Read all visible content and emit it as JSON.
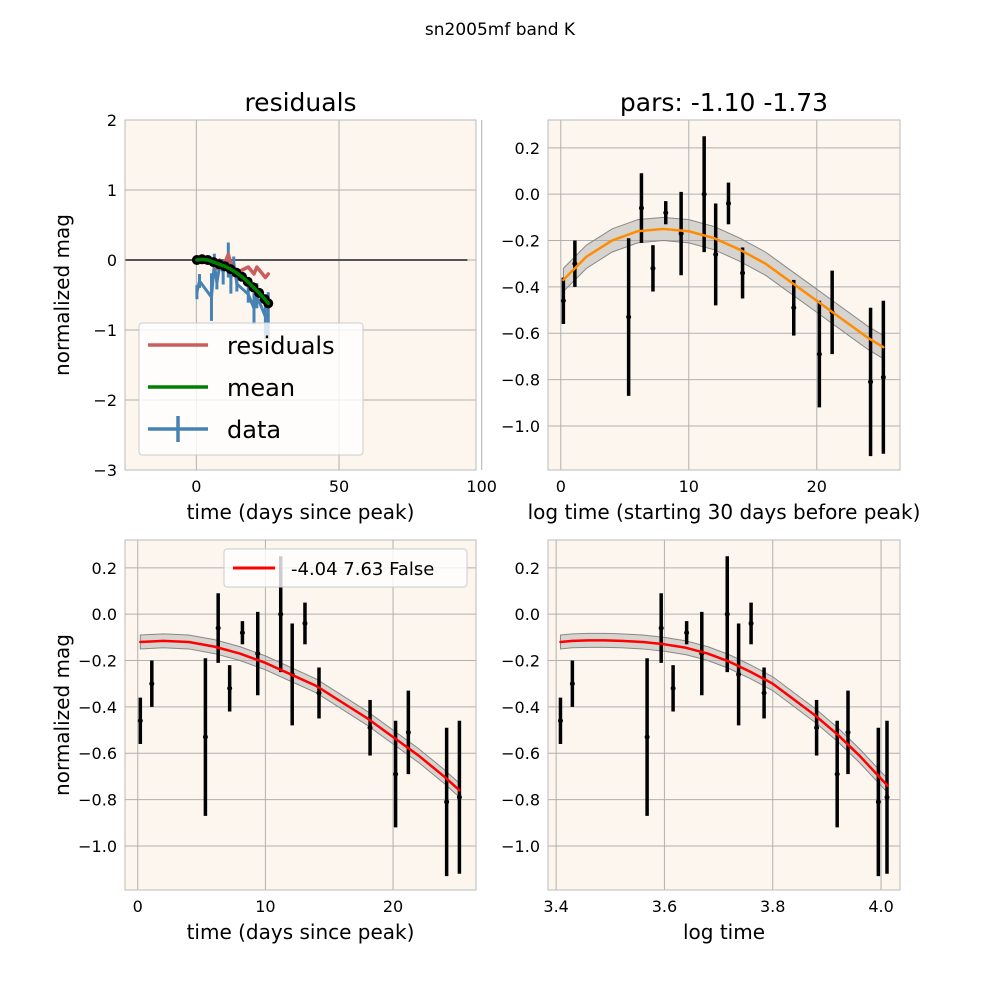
{
  "figure": {
    "suptitle": "sn2005mf band K"
  },
  "colors": {
    "axes_bg": "#fdf6ee",
    "grid": "#b0b0b0",
    "data": "#4682b4",
    "residuals": "#cd5c5c",
    "mean": "#008000",
    "fit_top": "#ff8c00",
    "fit_bottom": "#ff0000",
    "band": "#a9a9a9",
    "points": "#000000",
    "zero_line": "#555555"
  },
  "chart_data": [
    {
      "id": "tl",
      "type": "line",
      "title": "residuals",
      "xlabel": "time (days since peak)",
      "ylabel": "normalized mag",
      "xlim": [
        -25,
        98
      ],
      "ylim": [
        -3,
        2
      ],
      "xticks": [
        0,
        50,
        100
      ],
      "yticks": [
        -3,
        -2,
        -1,
        0,
        1,
        2
      ],
      "grid": true,
      "legend": {
        "position": "lower-left",
        "entries": [
          "residuals",
          "mean",
          "data"
        ]
      },
      "zero_line": {
        "x": [
          -25,
          95
        ],
        "y": 0
      },
      "series": [
        {
          "name": "residuals",
          "x": [
            0.2,
            1.1,
            5.3,
            6.3,
            7.2,
            8.2,
            9.4,
            11.2,
            12.1,
            13.1,
            14.2,
            18.2,
            20.2,
            21.2,
            24.2,
            25.2
          ],
          "y": [
            0.0,
            -0.02,
            -0.05,
            0.0,
            -0.12,
            0.0,
            -0.1,
            0.08,
            -0.05,
            -0.12,
            -0.18,
            -0.1,
            -0.2,
            -0.1,
            -0.25,
            -0.2
          ]
        },
        {
          "name": "mean",
          "x": [
            0.2,
            2,
            4,
            6,
            8,
            10,
            12,
            14,
            16,
            18,
            20,
            22,
            24,
            25.2
          ],
          "y": [
            0.0,
            0.01,
            0.0,
            -0.03,
            -0.06,
            -0.09,
            -0.13,
            -0.18,
            -0.24,
            -0.31,
            -0.39,
            -0.47,
            -0.56,
            -0.62
          ]
        },
        {
          "name": "data",
          "x": [
            0.2,
            1.1,
            5.3,
            6.3,
            7.2,
            8.2,
            9.4,
            11.2,
            12.1,
            13.1,
            14.2,
            18.2,
            20.2,
            21.2,
            24.2,
            25.2
          ],
          "y": [
            -0.46,
            -0.3,
            -0.53,
            -0.06,
            -0.32,
            -0.08,
            -0.17,
            0.0,
            -0.26,
            -0.04,
            -0.34,
            -0.49,
            -0.69,
            -0.51,
            -0.81,
            -0.79
          ],
          "yerr": [
            0.1,
            0.1,
            0.34,
            0.15,
            0.1,
            0.05,
            0.18,
            0.25,
            0.22,
            0.09,
            0.11,
            0.12,
            0.23,
            0.18,
            0.32,
            0.33
          ]
        }
      ]
    },
    {
      "id": "tr",
      "type": "line",
      "title": "pars: -1.10 -1.73",
      "xlabel": "log time (starting 30 days before peak)",
      "ylabel": "",
      "xlim": [
        -1,
        26.5
      ],
      "ylim": [
        -1.19,
        0.32
      ],
      "xticks": [
        0,
        10,
        20
      ],
      "yticks": [
        -1.0,
        -0.8,
        -0.6,
        -0.4,
        -0.2,
        0.0,
        0.2
      ],
      "ytick_labels": [
        "−1.0",
        "−0.8",
        "−0.6",
        "−0.4",
        "−0.2",
        "0.0",
        "0.2"
      ],
      "grid": true,
      "fit": {
        "x": [
          0.2,
          2,
          4,
          6,
          8,
          10,
          12,
          14,
          16,
          18,
          20,
          22,
          24,
          25.2
        ],
        "y": [
          -0.37,
          -0.27,
          -0.2,
          -0.16,
          -0.15,
          -0.16,
          -0.19,
          -0.24,
          -0.3,
          -0.38,
          -0.46,
          -0.54,
          -0.62,
          -0.66
        ],
        "band": 0.05
      },
      "points": {
        "x": [
          0.2,
          1.1,
          5.3,
          6.3,
          7.2,
          8.2,
          9.4,
          11.2,
          12.1,
          13.1,
          14.2,
          18.2,
          20.2,
          21.2,
          24.2,
          25.2
        ],
        "y": [
          -0.46,
          -0.3,
          -0.53,
          -0.06,
          -0.32,
          -0.08,
          -0.17,
          0.0,
          -0.26,
          -0.04,
          -0.34,
          -0.49,
          -0.69,
          -0.51,
          -0.81,
          -0.79
        ],
        "yerr": [
          0.1,
          0.1,
          0.34,
          0.15,
          0.1,
          0.05,
          0.18,
          0.25,
          0.22,
          0.09,
          0.11,
          0.12,
          0.23,
          0.18,
          0.32,
          0.33
        ]
      }
    },
    {
      "id": "bl",
      "type": "line",
      "title": "",
      "xlabel": "time (days since peak)",
      "ylabel": "normalized mag",
      "xlim": [
        -1,
        26.5
      ],
      "ylim": [
        -1.19,
        0.32
      ],
      "xticks": [
        0,
        10,
        20
      ],
      "yticks": [
        -1.0,
        -0.8,
        -0.6,
        -0.4,
        -0.2,
        0.0,
        0.2
      ],
      "ytick_labels": [
        "−1.0",
        "−0.8",
        "−0.6",
        "−0.4",
        "−0.2",
        "0.0",
        "0.2"
      ],
      "grid": true,
      "legend": {
        "position": "top-right",
        "entries": [
          "-4.04 7.63 False"
        ]
      },
      "fit": {
        "x": [
          0.2,
          2,
          4,
          6,
          8,
          10,
          12,
          14,
          16,
          18,
          20,
          22,
          24,
          25.2
        ],
        "y": [
          -0.12,
          -0.115,
          -0.12,
          -0.14,
          -0.17,
          -0.21,
          -0.26,
          -0.31,
          -0.38,
          -0.45,
          -0.53,
          -0.61,
          -0.7,
          -0.76
        ],
        "band": 0.03
      },
      "points": {
        "x": [
          0.2,
          1.1,
          5.3,
          6.3,
          7.2,
          8.2,
          9.4,
          11.2,
          12.1,
          13.1,
          14.2,
          18.2,
          20.2,
          21.2,
          24.2,
          25.2
        ],
        "y": [
          -0.46,
          -0.3,
          -0.53,
          -0.06,
          -0.32,
          -0.08,
          -0.17,
          0.0,
          -0.26,
          -0.04,
          -0.34,
          -0.49,
          -0.69,
          -0.51,
          -0.81,
          -0.79
        ],
        "yerr": [
          0.1,
          0.1,
          0.34,
          0.15,
          0.1,
          0.05,
          0.18,
          0.25,
          0.22,
          0.09,
          0.11,
          0.12,
          0.23,
          0.18,
          0.32,
          0.33
        ]
      }
    },
    {
      "id": "br",
      "type": "line",
      "title": "",
      "xlabel": "log time",
      "ylabel": "",
      "xlim": [
        3.385,
        4.035
      ],
      "ylim": [
        -1.19,
        0.32
      ],
      "xticks": [
        3.4,
        3.6,
        3.8,
        4.0
      ],
      "xtick_labels": [
        "3.4",
        "3.6",
        "3.8",
        "4.0"
      ],
      "yticks": [
        -1.0,
        -0.8,
        -0.6,
        -0.4,
        -0.2,
        0.0,
        0.2
      ],
      "ytick_labels": [
        "−1.0",
        "−0.8",
        "−0.6",
        "−0.4",
        "−0.2",
        "0.0",
        "0.2"
      ],
      "grid": true,
      "fit": {
        "x": [
          3.408,
          3.43,
          3.46,
          3.49,
          3.52,
          3.56,
          3.6,
          3.64,
          3.68,
          3.72,
          3.76,
          3.8,
          3.84,
          3.88,
          3.92,
          3.96,
          4.0,
          4.012
        ],
        "y": [
          -0.12,
          -0.115,
          -0.113,
          -0.113,
          -0.115,
          -0.12,
          -0.13,
          -0.145,
          -0.17,
          -0.205,
          -0.25,
          -0.3,
          -0.37,
          -0.44,
          -0.52,
          -0.61,
          -0.71,
          -0.74
        ],
        "band": 0.03
      },
      "points": {
        "x": [
          3.408,
          3.43,
          3.568,
          3.594,
          3.616,
          3.641,
          3.669,
          3.716,
          3.737,
          3.76,
          3.784,
          3.881,
          3.919,
          3.939,
          3.995,
          4.011
        ],
        "y": [
          -0.46,
          -0.3,
          -0.53,
          -0.06,
          -0.32,
          -0.08,
          -0.17,
          0.0,
          -0.26,
          -0.04,
          -0.34,
          -0.49,
          -0.69,
          -0.51,
          -0.81,
          -0.79
        ],
        "yerr": [
          0.1,
          0.1,
          0.34,
          0.15,
          0.1,
          0.05,
          0.18,
          0.25,
          0.22,
          0.09,
          0.11,
          0.12,
          0.23,
          0.18,
          0.32,
          0.33
        ]
      }
    }
  ]
}
